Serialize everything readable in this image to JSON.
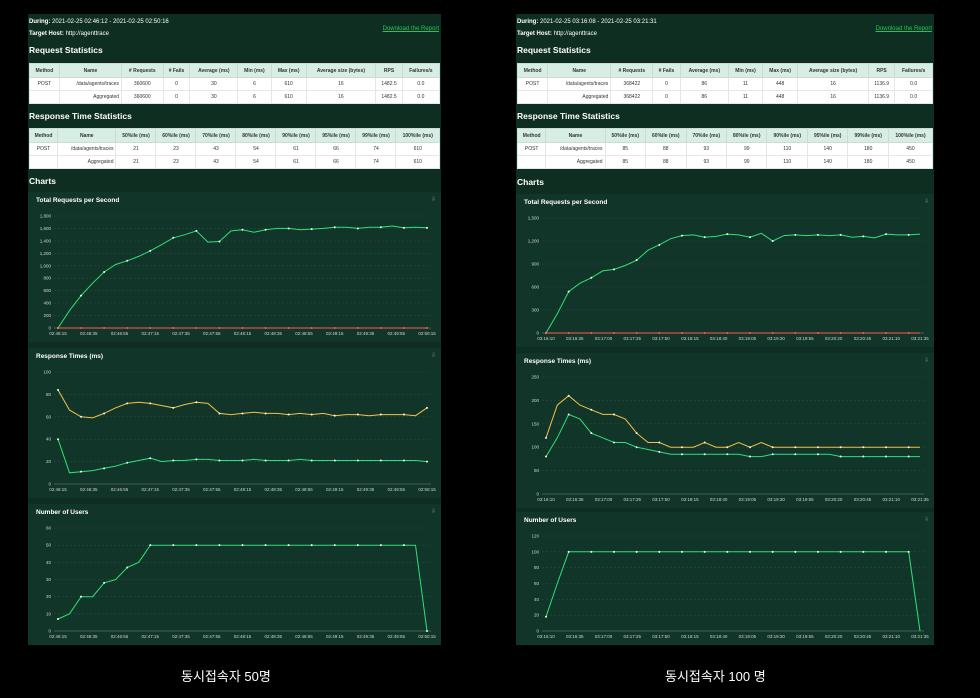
{
  "reports": [
    {
      "during_label": "During:",
      "during": "2021-02-25 02:46:12 - 2021-02-25 02:50:16",
      "target_label": "Target Host:",
      "target": "http://agenttrace",
      "download": "Download the Report",
      "req_title": "Request Statistics",
      "req_headers": [
        "Method",
        "Name",
        "# Requests",
        "# Fails",
        "Average (ms)",
        "Min (ms)",
        "Max (ms)",
        "Average size (bytes)",
        "RPS",
        "Failures/s"
      ],
      "req_rows": [
        [
          "POST",
          "/data/agents/traces",
          "360600",
          "0",
          "30",
          "6",
          "610",
          "16",
          "1482.5",
          "0.0"
        ],
        [
          "",
          "Aggregated",
          "360600",
          "0",
          "30",
          "6",
          "610",
          "16",
          "1482.5",
          "0.0"
        ]
      ],
      "resp_title": "Response Time Statistics",
      "resp_headers": [
        "Method",
        "Name",
        "50%ile (ms)",
        "60%ile (ms)",
        "70%ile (ms)",
        "80%ile (ms)",
        "90%ile (ms)",
        "95%ile (ms)",
        "99%ile (ms)",
        "100%ile (ms)"
      ],
      "resp_rows": [
        [
          "POST",
          "/data/agents/traces",
          "21",
          "23",
          "43",
          "54",
          "61",
          "66",
          "74",
          "610"
        ],
        [
          "",
          "Aggregated",
          "21",
          "23",
          "43",
          "54",
          "61",
          "66",
          "74",
          "610"
        ]
      ],
      "charts_title": "Charts",
      "chart_data": [
        {
          "type": "line",
          "title": "Total Requests per Second",
          "xlabel": "",
          "ylabel": "",
          "x_ticks": [
            "02:46:15",
            "02:46:35",
            "02:46:55",
            "02:47:15",
            "02:47:35",
            "02:47:55",
            "02:48:15",
            "02:48:35",
            "02:48:55",
            "02:49:15",
            "02:49:35",
            "02:49:55",
            "02:50:15"
          ],
          "ylim": [
            0,
            1800
          ],
          "y_ticks": [
            0,
            200,
            400,
            600,
            800,
            1000,
            1200,
            1400,
            1600,
            1800
          ],
          "series": [
            {
              "color": "#2ee07a",
              "values": [
                0,
                280,
                520,
                720,
                900,
                1020,
                1080,
                1150,
                1240,
                1340,
                1450,
                1500,
                1560,
                1380,
                1390,
                1560,
                1580,
                1540,
                1580,
                1600,
                1600,
                1580,
                1590,
                1600,
                1620,
                1620,
                1600,
                1620,
                1620,
                1640,
                1610,
                1620,
                1610
              ]
            },
            {
              "color": "#ff5a4f",
              "values": [
                0,
                0,
                0,
                0,
                0,
                0,
                0,
                0,
                0,
                0,
                0,
                0,
                0,
                0,
                0,
                0,
                0,
                0,
                0,
                0,
                0,
                0,
                0,
                0,
                0,
                0,
                0,
                0,
                0,
                0,
                0,
                0,
                0
              ]
            }
          ]
        },
        {
          "type": "line",
          "title": "Response Times (ms)",
          "xlabel": "",
          "ylabel": "",
          "x_ticks": [
            "02:46:15",
            "02:46:35",
            "02:46:55",
            "02:47:15",
            "02:47:35",
            "02:47:55",
            "02:48:15",
            "02:48:35",
            "02:48:55",
            "02:49:15",
            "02:49:35",
            "02:49:55",
            "02:50:15"
          ],
          "ylim": [
            0,
            100
          ],
          "y_ticks": [
            0,
            20,
            40,
            60,
            80,
            100
          ],
          "series": [
            {
              "color": "#f5c04a",
              "values": [
                84,
                66,
                60,
                59,
                63,
                68,
                72,
                73,
                72,
                70,
                68,
                71,
                73,
                72,
                63,
                62,
                63,
                64,
                63,
                63,
                62,
                63,
                62,
                63,
                61,
                62,
                62,
                61,
                62,
                62,
                62,
                61,
                68
              ]
            },
            {
              "color": "#2ee07a",
              "values": [
                40,
                10,
                11,
                12,
                14,
                16,
                19,
                21,
                23,
                20,
                21,
                21,
                22,
                22,
                21,
                21,
                21,
                22,
                21,
                21,
                21,
                22,
                21,
                21,
                21,
                21,
                21,
                21,
                21,
                21,
                21,
                21,
                20
              ]
            }
          ]
        },
        {
          "type": "line",
          "title": "Number of Users",
          "xlabel": "",
          "ylabel": "",
          "x_ticks": [
            "02:46:15",
            "02:46:35",
            "02:46:55",
            "02:47:15",
            "02:47:35",
            "02:47:55",
            "02:48:15",
            "02:48:35",
            "02:48:55",
            "02:49:15",
            "02:49:35",
            "02:49:55",
            "02:50:15"
          ],
          "ylim": [
            0,
            60
          ],
          "y_ticks": [
            0,
            10,
            20,
            30,
            40,
            50,
            60
          ],
          "series": [
            {
              "color": "#2ee07a",
              "values": [
                7,
                10,
                20,
                20,
                28,
                30,
                37,
                40,
                50,
                50,
                50,
                50,
                50,
                50,
                50,
                50,
                50,
                50,
                50,
                50,
                50,
                50,
                50,
                50,
                50,
                50,
                50,
                50,
                50,
                50,
                50,
                50,
                0
              ]
            }
          ]
        }
      ],
      "caption": "동시접속자 50명"
    },
    {
      "during_label": "During:",
      "during": "2021-02-25 03:16:08 - 2021-02-25 03:21:31",
      "target_label": "Target Host:",
      "target": "http://agenttrace",
      "download": "Download the Report",
      "req_title": "Request Statistics",
      "req_headers": [
        "Method",
        "Name",
        "# Requests",
        "# Fails",
        "Average (ms)",
        "Min (ms)",
        "Max (ms)",
        "Average size (bytes)",
        "RPS",
        "Failures/s"
      ],
      "req_rows": [
        [
          "POST",
          "/data/agents/traces",
          "368422",
          "0",
          "86",
          "11",
          "448",
          "16",
          "1136.9",
          "0.0"
        ],
        [
          "",
          "Aggregated",
          "368422",
          "0",
          "86",
          "11",
          "448",
          "16",
          "1136.9",
          "0.0"
        ]
      ],
      "resp_title": "Response Time Statistics",
      "resp_headers": [
        "Method",
        "Name",
        "50%ile (ms)",
        "60%ile (ms)",
        "70%ile (ms)",
        "80%ile (ms)",
        "90%ile (ms)",
        "95%ile (ms)",
        "99%ile (ms)",
        "100%ile (ms)"
      ],
      "resp_rows": [
        [
          "POST",
          "/data/agents/traces",
          "85",
          "88",
          "93",
          "99",
          "110",
          "140",
          "180",
          "450"
        ],
        [
          "",
          "Aggregated",
          "85",
          "88",
          "93",
          "99",
          "110",
          "140",
          "180",
          "450"
        ]
      ],
      "charts_title": "Charts",
      "chart_data": [
        {
          "type": "line",
          "title": "Total Requests per Second",
          "xlabel": "",
          "ylabel": "",
          "x_ticks": [
            "03:16:10",
            "03:16:35",
            "03:17:00",
            "03:17:25",
            "03:17:50",
            "03:18:15",
            "03:18:40",
            "03:19:05",
            "03:19:30",
            "03:19:55",
            "03:20:20",
            "03:20:45",
            "03:21:10",
            "03:21:35"
          ],
          "ylim": [
            0,
            1500
          ],
          "y_ticks": [
            0,
            300,
            600,
            900,
            1200,
            1500
          ],
          "series": [
            {
              "color": "#2ee07a",
              "values": [
                0,
                250,
                540,
                650,
                720,
                810,
                830,
                880,
                950,
                1080,
                1150,
                1230,
                1270,
                1280,
                1250,
                1260,
                1290,
                1280,
                1250,
                1300,
                1200,
                1270,
                1280,
                1270,
                1280,
                1270,
                1280,
                1250,
                1260,
                1240,
                1290,
                1280,
                1280,
                1290
              ]
            },
            {
              "color": "#ff5a4f",
              "values": [
                0,
                0,
                0,
                0,
                0,
                0,
                0,
                0,
                0,
                0,
                0,
                0,
                0,
                0,
                0,
                0,
                0,
                0,
                0,
                0,
                0,
                0,
                0,
                0,
                0,
                0,
                0,
                0,
                0,
                0,
                0,
                0,
                0,
                0
              ]
            }
          ]
        },
        {
          "type": "line",
          "title": "Response Times (ms)",
          "xlabel": "",
          "ylabel": "",
          "x_ticks": [
            "03:16:10",
            "03:16:35",
            "03:17:00",
            "03:17:25",
            "03:17:50",
            "03:18:15",
            "03:18:40",
            "03:19:05",
            "03:19:30",
            "03:19:55",
            "03:20:20",
            "03:20:45",
            "03:21:10",
            "03:21:35"
          ],
          "ylim": [
            0,
            250
          ],
          "y_ticks": [
            0,
            50,
            100,
            150,
            200,
            250
          ],
          "series": [
            {
              "color": "#f5c04a",
              "values": [
                120,
                190,
                210,
                190,
                180,
                170,
                170,
                160,
                130,
                110,
                110,
                100,
                100,
                100,
                110,
                100,
                100,
                110,
                100,
                110,
                100,
                100,
                100,
                100,
                100,
                100,
                100,
                100,
                100,
                100,
                100,
                100,
                100,
                100
              ]
            },
            {
              "color": "#2ee07a",
              "values": [
                80,
                120,
                170,
                160,
                130,
                120,
                110,
                110,
                100,
                95,
                90,
                85,
                85,
                85,
                85,
                85,
                85,
                85,
                80,
                80,
                85,
                85,
                85,
                85,
                85,
                85,
                80,
                80,
                80,
                80,
                80,
                80,
                80,
                80
              ]
            }
          ]
        },
        {
          "type": "line",
          "title": "Number of Users",
          "xlabel": "",
          "ylabel": "",
          "x_ticks": [
            "03:16:10",
            "03:16:35",
            "03:17:00",
            "03:17:25",
            "03:17:50",
            "03:18:15",
            "03:18:40",
            "03:19:05",
            "03:19:30",
            "03:19:55",
            "03:20:20",
            "03:20:45",
            "03:21:10",
            "03:21:35"
          ],
          "ylim": [
            0,
            120
          ],
          "y_ticks": [
            0,
            20,
            40,
            60,
            80,
            100,
            120
          ],
          "series": [
            {
              "color": "#2ee07a",
              "values": [
                18,
                60,
                100,
                100,
                100,
                100,
                100,
                100,
                100,
                100,
                100,
                100,
                100,
                100,
                100,
                100,
                100,
                100,
                100,
                100,
                100,
                100,
                100,
                100,
                100,
                100,
                100,
                100,
                100,
                100,
                100,
                100,
                100,
                0
              ]
            }
          ]
        }
      ],
      "caption": "동시접속자 100 명"
    }
  ],
  "download_icon": "download-icon"
}
